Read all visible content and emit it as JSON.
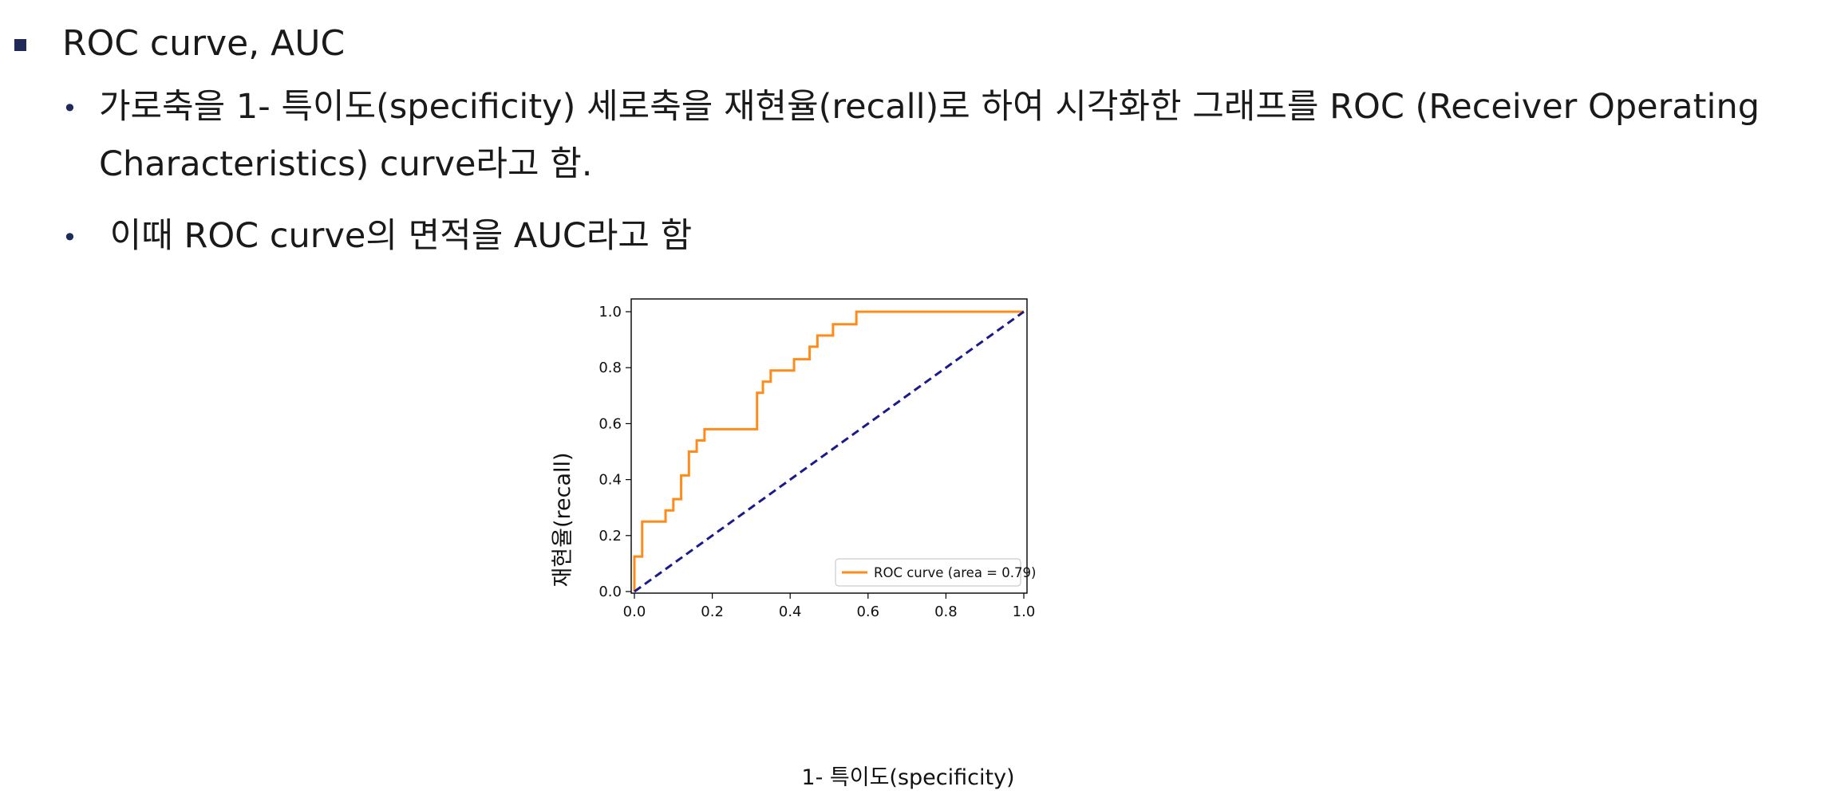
{
  "heading": "ROC curve, AUC",
  "bullets": [
    "가로축을 1- 특이도(specificity) 세로축을 재현율(recall)로 하여 시각화한 그래프를 ROC (Receiver Operating Characteristics)  curve라고 함.",
    " 이때 ROC curve의 면적을 AUC라고 함"
  ],
  "colors": {
    "bullet": "#1f2a5a",
    "roc": "#ff8c1a",
    "diagonal": "#1a1a8c"
  },
  "chart_data": {
    "type": "line",
    "xlabel": "1- 특이도(specificity)",
    "ylabel": "재현율(recall)",
    "xlim": [
      0,
      1
    ],
    "ylim": [
      0,
      1
    ],
    "xticks": [
      "0.0",
      "0.2",
      "0.4",
      "0.6",
      "0.8",
      "1.0"
    ],
    "yticks": [
      "0.0",
      "0.2",
      "0.4",
      "0.6",
      "0.8",
      "1.0"
    ],
    "legend_position": "lower-right",
    "grid": false,
    "series": [
      {
        "name": "ROC curve (area = 0.79)",
        "style": "solid",
        "color": "#ff8c1a",
        "x": [
          0,
          0,
          0.02,
          0.02,
          0.08,
          0.08,
          0.1,
          0.1,
          0.12,
          0.12,
          0.14,
          0.14,
          0.16,
          0.16,
          0.18,
          0.18,
          0.315,
          0.315,
          0.33,
          0.33,
          0.35,
          0.35,
          0.41,
          0.41,
          0.45,
          0.45,
          0.47,
          0.47,
          0.51,
          0.51,
          0.57,
          0.57,
          1.0
        ],
        "y": [
          0,
          0.125,
          0.125,
          0.25,
          0.25,
          0.29,
          0.29,
          0.33,
          0.33,
          0.415,
          0.415,
          0.5,
          0.5,
          0.54,
          0.54,
          0.58,
          0.58,
          0.71,
          0.71,
          0.75,
          0.75,
          0.79,
          0.79,
          0.83,
          0.83,
          0.875,
          0.875,
          0.915,
          0.915,
          0.955,
          0.955,
          1.0,
          1.0
        ]
      },
      {
        "style": "dashed",
        "color": "#1a1a8c",
        "x": [
          0,
          1
        ],
        "y": [
          0,
          1
        ]
      }
    ]
  }
}
